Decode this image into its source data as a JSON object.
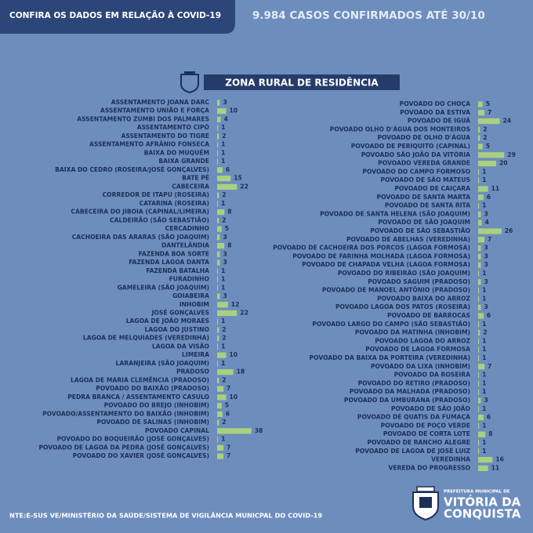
{
  "header": {
    "title": "CONFIRA OS DADOS EM RELAÇÃO À COVID-19",
    "headline": "9.984 CASOS CONFIRMADOS ATÉ 30/10"
  },
  "section_title": "ZONA RURAL DE RESIDÊNCIA",
  "chart_data": [
    {
      "type": "bar",
      "orientation": "horizontal",
      "color": "#a9d17f",
      "categories": [
        "ASSENTAMENTO JOANA DARC",
        "ASSENTAMENTO UNIÃO E FORÇA",
        "ASSENTAMENTO ZUMBI DOS PALMARES",
        "ASSENTAMENTO CIPÓ",
        "ASSENTAMENTO DO TIGRE",
        "ASSENTAMENTO AFRÂNIO FONSECA",
        "BAIXA DO MUQUÉM",
        "BAIXA GRANDE",
        "BAIXA DO CEDRO (ROSEIRA/JOSÉ GONÇALVES)",
        "BATE PÉ",
        "CABECEIRA",
        "CORREDOR DE ITAPU (ROSEIRA)",
        "CATARINA (ROSEIRA)",
        "CABECEIRA DO JIBOIA (CAPINAL/LIMEIRA)",
        "CALDEIRÃO (SÃO SEBASTIÃO)",
        "CERCADINHO",
        "CACHOEIRA DAS ARARAS (SÃO JOAQUIM)",
        "DANTELÂNDIA",
        "FAZENDA BOA SORTE",
        "FAZENDA LAGOA DANTA",
        "FAZENDA BATALHA",
        "FURADINHO",
        "GAMELEIRA (SÃO JOAQUIM)",
        "GOIABEIRA",
        "INHOBIM",
        "JOSÉ GONÇALVES",
        "LAGOA DE JOÃO MORAES",
        "LAGOA DO JUSTINO",
        "LAGOA DE MELQUIADES (VEREDINHA)",
        "LAGOA DA VISÃO",
        "LIMEIRA",
        "LARANJEIRA (SÃO JOAQUIM)",
        "PRADOSO",
        "LAGOA DE MARIA CLEMÊNCIA (PRADOSO)",
        "POVOADO DO BAIXÃO (PRADOSO)",
        "PEDRA BRANCA / ASSENTAMENTO CASULO",
        "POVOADO DO BREJO (INHOBIM)",
        "POVOADO/ASSENTAMENTO DO BAIXÃO (INHOBIM)",
        "POVOADO DE SALINAS (INHOBIM)",
        "POVOADO CAPINAL",
        "POVOADO DO BOQUEIRÃO (JOSÉ GONÇALVES)",
        "POVOADO DE LAGOA DA PEDRA (JOSÉ GONÇALVES)",
        "POVOADO DO XAVIER (JOSÉ GONÇALVES)"
      ],
      "values": [
        3,
        10,
        4,
        1,
        2,
        1,
        1,
        1,
        6,
        15,
        22,
        2,
        1,
        8,
        2,
        5,
        3,
        8,
        3,
        3,
        1,
        1,
        1,
        3,
        12,
        22,
        1,
        2,
        2,
        1,
        10,
        1,
        18,
        2,
        7,
        10,
        5,
        6,
        2,
        38,
        1,
        7,
        7
      ]
    },
    {
      "type": "bar",
      "orientation": "horizontal",
      "color": "#a9d17f",
      "categories": [
        "POVOADO DO CHOÇA",
        "POVOADO DA ESTIVA",
        "POVOADO DE IGUÁ",
        "POVOADO OLHO D'ÁGUA DOS MONTEIROS",
        "POVOADO DE OLHO D'ÁGUA",
        "POVOADO DE PERIQUITO (CAPINAL)",
        "POVOADO SÃO JOÃO DA VITÓRIA",
        "POVOADO VEREDA GRANDE",
        "POVOADO DO CAMPO FORMOSO",
        "POVOADO DE SÃO MATEUS",
        "POVOADO DE CAIÇARA",
        "POVOADO DE SANTA MARTA",
        "POVOADO DE SANTA RITA",
        "POVOADO DE SANTA HELENA (SÃO JOAQUIM)",
        "POVOADO DE SÃO JOAQUIM",
        "POVOADO DE SÃO SEBASTIÃO",
        "POVOADO DE ABELHAS (VEREDINHA)",
        "POVOADO DE CACHOEIRA DOS PORCOS (LAGOA FORMOSA)",
        "POVOADO DE FARINHA MOLHADA (LAGOA FORMOSA)",
        "POVOADO DE CHAPADA VELHA (LAGOA FORMOSA)",
        "POVOADO DO RIBEIRÃO (SÃO JOAQUIM)",
        "POVOADO SAGUIM (PRADOSO)",
        "POVOADO DE MANOEL ANTÔNIO (PRADOSO)",
        "POVOADO BAIXA DO ARROZ",
        "POVOADO LAGOA DOS PATOS (ROSEIRA)",
        "POVOADO DE BARROCAS",
        "POVOADO LARGO DO CAMPO (SÃO SEBASTIÃO)",
        "POVOADO DA MATINHA (INHOBIM)",
        "POVOADO LAGOA DO ARROZ",
        "POVOADO DE LAGOA FORMOSA",
        "POVOADO DA BAIXA DA PORTEIRA (VEREDINHA)",
        "POVOADO DA LIXA (INHOBIM)",
        "POVOADO DA ROSEIRA",
        "POVOADO DO RETIRO (PRADOSO)",
        "POVOADO DA MALHADA (PRADOSO)",
        "POVOADO DA UMBURANA (PRADOSO)",
        "POVOADO DE SÃO JOÃO",
        "POVOADO DE QUATIS DA FUMAÇA",
        "POVOADO DE POÇO VERDE",
        "POVOADO DE CORTA LOTE",
        "POVOADO DE RANCHO ALEGRE",
        "POVOADO DE LAGOA DE JOSÉ LUIZ",
        "VEREDINHA",
        "VEREDA DO PROGRESSO"
      ],
      "values": [
        5,
        7,
        24,
        2,
        2,
        5,
        29,
        20,
        1,
        1,
        11,
        6,
        1,
        3,
        4,
        26,
        7,
        3,
        3,
        3,
        1,
        3,
        1,
        1,
        3,
        6,
        1,
        2,
        1,
        1,
        1,
        7,
        1,
        1,
        1,
        3,
        1,
        6,
        1,
        8,
        1,
        1,
        16,
        11
      ]
    }
  ],
  "footer": {
    "source": "NTE:E-SUS VE/MINISTÉRIO DA SAÚDE/SISTEMA DE VIGILÂNCIA MUNICPAL DO COVID-19",
    "logo": {
      "line1": "PREFEITURA MUNICIPAL DE",
      "line2": "VITÓRIA DA",
      "line3": "CONQUISTA"
    }
  }
}
